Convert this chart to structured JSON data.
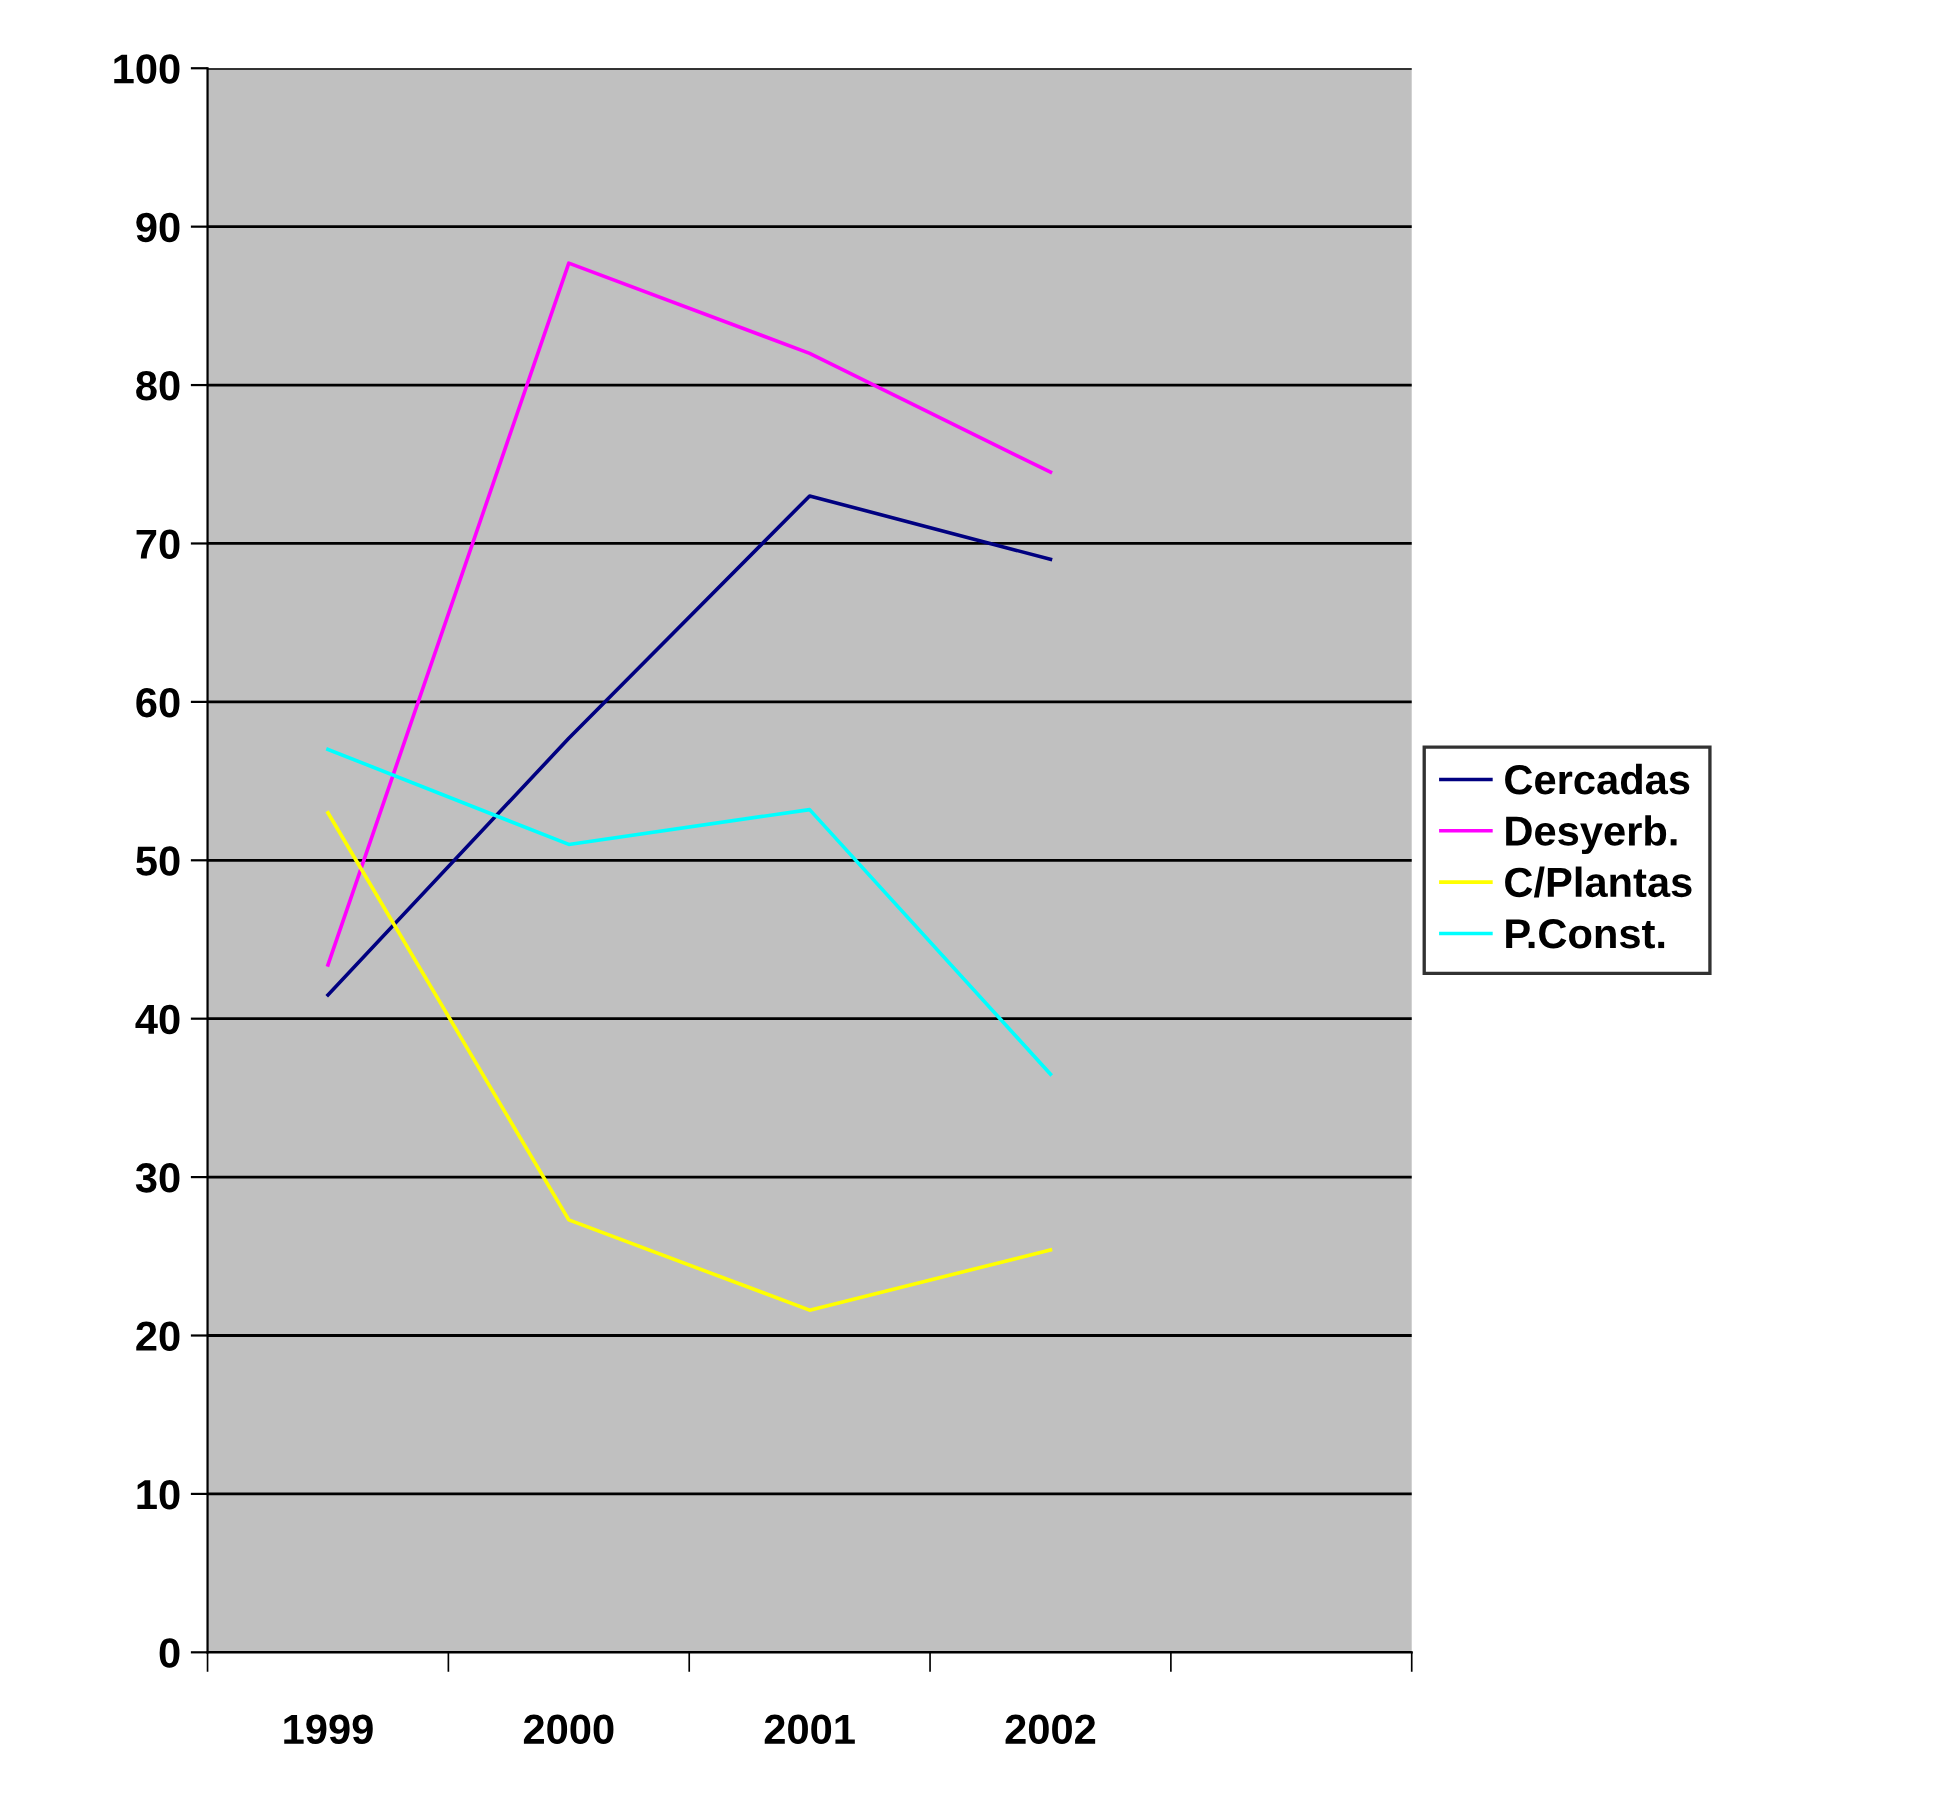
{
  "chart_data": {
    "type": "line",
    "categories": [
      "1999",
      "2000",
      "2001",
      "2002",
      null
    ],
    "series": [
      {
        "name": "Cercadas",
        "color": "#000080",
        "values": [
          41.5,
          57.7,
          73,
          69,
          null
        ]
      },
      {
        "name": "Desyerb.",
        "color": "#ff00ff",
        "values": [
          43.4,
          87.7,
          82,
          74.5,
          null
        ]
      },
      {
        "name": "C/Plantas",
        "color": "#ffff00",
        "values": [
          53,
          27.3,
          21.6,
          25.4,
          null
        ]
      },
      {
        "name": "P.Const.",
        "color": "#00ffff",
        "values": [
          57,
          51,
          53.2,
          36.5,
          null
        ]
      }
    ],
    "ylim": [
      0,
      100
    ],
    "yticks": [
      0,
      10,
      20,
      30,
      40,
      50,
      60,
      70,
      80,
      90,
      100
    ],
    "grid": "y",
    "legend": "right",
    "marker": "none",
    "line_style": "solid"
  }
}
